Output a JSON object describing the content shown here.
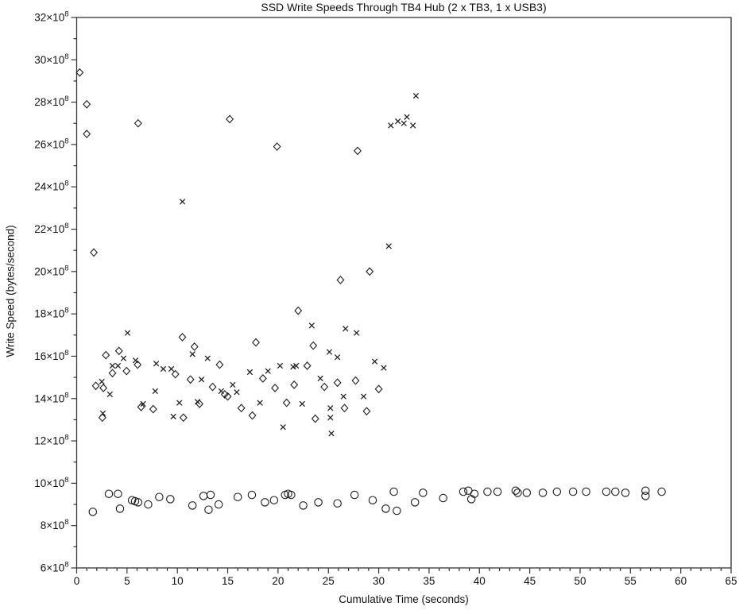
{
  "page": {
    "background": "#ffffff",
    "ink_color": "#1c1c1c",
    "frame_color": "#333333"
  },
  "chart_data": {
    "type": "scatter",
    "title": "SSD Write Speeds Through TB4 Hub (2 x TB3, 1 x USB3)",
    "xlabel": "Cumulative Time (seconds)",
    "ylabel": "Write Speed (bytes/second)",
    "xlim": [
      0,
      65
    ],
    "ylim_e8": [
      6,
      32
    ],
    "x_major_ticks": [
      0,
      5,
      10,
      15,
      20,
      25,
      30,
      35,
      40,
      45,
      50,
      55,
      60,
      65
    ],
    "x_minor_step": 1,
    "y_major_ticks_e8": [
      6,
      8,
      10,
      12,
      14,
      16,
      18,
      20,
      22,
      24,
      26,
      28,
      30,
      32
    ],
    "y_minor_step_e8": 1,
    "y_tick_label_base": "×10",
    "y_tick_label_exponent": "8",
    "grid": false,
    "legend": "none",
    "y_values_unit": "1e8 bytes/second",
    "series": [
      {
        "name": "diamond-series",
        "marker": "diamond",
        "points": [
          [
            0.3,
            29.4
          ],
          [
            1.0,
            27.9
          ],
          [
            1.0,
            26.5
          ],
          [
            1.7,
            20.9
          ],
          [
            6.1,
            27.0
          ],
          [
            15.2,
            27.2
          ],
          [
            19.9,
            25.9
          ],
          [
            27.9,
            25.7
          ],
          [
            26.2,
            19.6
          ],
          [
            29.1,
            20.0
          ],
          [
            2.9,
            16.05
          ],
          [
            4.2,
            16.25
          ],
          [
            3.55,
            15.2
          ],
          [
            4.95,
            15.3
          ],
          [
            6.05,
            15.6
          ],
          [
            9.8,
            15.15
          ],
          [
            1.9,
            14.6
          ],
          [
            2.65,
            14.5
          ],
          [
            2.55,
            13.1
          ],
          [
            6.4,
            13.6
          ],
          [
            7.6,
            13.5
          ],
          [
            10.6,
            13.1
          ],
          [
            10.5,
            16.9
          ],
          [
            11.7,
            16.45
          ],
          [
            14.2,
            15.6
          ],
          [
            17.8,
            16.65
          ],
          [
            11.3,
            14.9
          ],
          [
            13.5,
            14.55
          ],
          [
            14.7,
            14.2
          ],
          [
            15.0,
            14.1
          ],
          [
            12.2,
            13.75
          ],
          [
            16.35,
            13.55
          ],
          [
            17.45,
            13.2
          ],
          [
            18.5,
            14.95
          ],
          [
            19.7,
            14.5
          ],
          [
            20.85,
            13.8
          ],
          [
            22.0,
            18.15
          ],
          [
            23.5,
            16.5
          ],
          [
            22.9,
            15.55
          ],
          [
            21.6,
            14.65
          ],
          [
            24.6,
            14.55
          ],
          [
            25.9,
            14.75
          ],
          [
            27.7,
            14.85
          ],
          [
            30.0,
            14.45
          ],
          [
            26.6,
            13.55
          ],
          [
            28.8,
            13.4
          ],
          [
            23.7,
            13.05
          ]
        ]
      },
      {
        "name": "x-series",
        "marker": "cross",
        "points": [
          [
            10.5,
            23.3
          ],
          [
            31.0,
            21.2
          ],
          [
            31.2,
            26.9
          ],
          [
            31.9,
            27.1
          ],
          [
            32.5,
            27.0
          ],
          [
            32.8,
            27.3
          ],
          [
            33.4,
            26.9
          ],
          [
            33.7,
            28.3
          ],
          [
            5.05,
            17.1
          ],
          [
            4.65,
            15.9
          ],
          [
            3.55,
            15.55
          ],
          [
            4.1,
            15.55
          ],
          [
            5.85,
            15.8
          ],
          [
            7.9,
            15.65
          ],
          [
            8.6,
            15.4
          ],
          [
            9.4,
            15.4
          ],
          [
            2.5,
            14.8
          ],
          [
            3.3,
            14.2
          ],
          [
            7.8,
            14.35
          ],
          [
            6.6,
            13.75
          ],
          [
            10.2,
            13.8
          ],
          [
            9.6,
            13.15
          ],
          [
            2.6,
            13.3
          ],
          [
            11.5,
            16.1
          ],
          [
            13.0,
            15.9
          ],
          [
            17.2,
            15.25
          ],
          [
            19.0,
            15.3
          ],
          [
            20.2,
            15.55
          ],
          [
            21.5,
            15.5
          ],
          [
            12.4,
            14.9
          ],
          [
            15.5,
            14.65
          ],
          [
            15.9,
            14.3
          ],
          [
            14.35,
            14.35
          ],
          [
            12.0,
            13.85
          ],
          [
            18.2,
            13.8
          ],
          [
            20.5,
            12.65
          ],
          [
            23.35,
            17.45
          ],
          [
            26.7,
            17.3
          ],
          [
            27.8,
            17.1
          ],
          [
            25.1,
            16.2
          ],
          [
            25.9,
            15.95
          ],
          [
            21.8,
            15.55
          ],
          [
            29.6,
            15.75
          ],
          [
            30.5,
            15.45
          ],
          [
            24.2,
            14.95
          ],
          [
            26.5,
            14.1
          ],
          [
            28.5,
            14.1
          ],
          [
            22.4,
            13.75
          ],
          [
            25.2,
            13.55
          ],
          [
            25.2,
            13.1
          ],
          [
            25.3,
            12.35
          ]
        ]
      },
      {
        "name": "circle-series",
        "marker": "circle",
        "points": [
          [
            1.6,
            8.65
          ],
          [
            3.2,
            9.5
          ],
          [
            4.1,
            9.5
          ],
          [
            4.3,
            8.8
          ],
          [
            5.5,
            9.2
          ],
          [
            5.8,
            9.15
          ],
          [
            6.1,
            9.1
          ],
          [
            7.1,
            9.0
          ],
          [
            8.2,
            9.35
          ],
          [
            9.3,
            9.25
          ],
          [
            11.5,
            8.95
          ],
          [
            12.6,
            9.4
          ],
          [
            13.1,
            8.75
          ],
          [
            13.3,
            9.45
          ],
          [
            14.1,
            9.0
          ],
          [
            16.0,
            9.35
          ],
          [
            17.4,
            9.45
          ],
          [
            18.7,
            9.1
          ],
          [
            19.6,
            9.2
          ],
          [
            20.7,
            9.45
          ],
          [
            21.0,
            9.5
          ],
          [
            21.3,
            9.45
          ],
          [
            22.5,
            8.95
          ],
          [
            24.0,
            9.1
          ],
          [
            25.9,
            9.05
          ],
          [
            27.6,
            9.45
          ],
          [
            29.4,
            9.2
          ],
          [
            30.7,
            8.8
          ],
          [
            31.5,
            9.6
          ],
          [
            31.8,
            8.7
          ],
          [
            33.6,
            9.1
          ],
          [
            34.4,
            9.55
          ],
          [
            36.4,
            9.3
          ],
          [
            38.4,
            9.6
          ],
          [
            38.9,
            9.65
          ],
          [
            39.2,
            9.25
          ],
          [
            39.5,
            9.5
          ],
          [
            40.8,
            9.6
          ],
          [
            41.8,
            9.6
          ],
          [
            43.6,
            9.65
          ],
          [
            43.8,
            9.55
          ],
          [
            44.7,
            9.55
          ],
          [
            46.3,
            9.55
          ],
          [
            47.7,
            9.6
          ],
          [
            49.3,
            9.6
          ],
          [
            50.6,
            9.6
          ],
          [
            52.6,
            9.6
          ],
          [
            53.5,
            9.6
          ],
          [
            54.5,
            9.55
          ],
          [
            56.5,
            9.65
          ],
          [
            56.5,
            9.4
          ],
          [
            58.1,
            9.6
          ]
        ]
      }
    ]
  }
}
